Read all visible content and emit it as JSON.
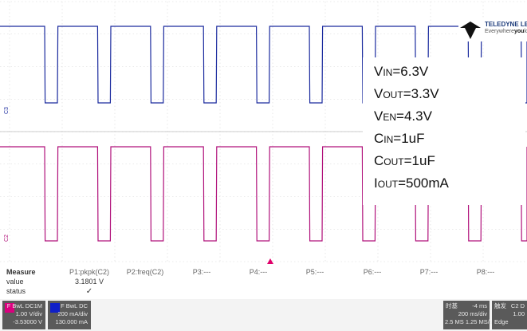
{
  "scope": {
    "channels": [
      {
        "name": "C3",
        "color": "#1a2a9e",
        "label": "C3"
      },
      {
        "name": "C2",
        "color": "#b0107a",
        "label": "C2"
      }
    ],
    "trigger_color": "#e0006b"
  },
  "logo": {
    "brand": "TELEDYNE LECROY",
    "tagline_pre": "Everywhere",
    "tagline_you": "you",
    "tagline_post": "look"
  },
  "annotation": {
    "lines": [
      {
        "main": "V",
        "sub": "IN",
        "rest": "=6.3V"
      },
      {
        "main": "V",
        "sub": "OUT",
        "rest": "=3.3V"
      },
      {
        "main": "V",
        "sub": "EN",
        "rest": "=4.3V"
      },
      {
        "main": "C",
        "sub": "IN",
        "rest": "=1uF"
      },
      {
        "main": "C",
        "sub": "OUT",
        "rest": "=1uF"
      },
      {
        "main": "I",
        "sub": "OUT",
        "rest": "=500mA"
      }
    ]
  },
  "measure": {
    "row_labels": {
      "title": "Measure",
      "value": "value",
      "status": "status"
    },
    "params": [
      {
        "name": "P1:pkpk(C2)",
        "value": "3.1801 V",
        "status": "✓"
      },
      {
        "name": "P2:freq(C2)",
        "value": "",
        "status": ""
      },
      {
        "name": "P3:---",
        "value": "",
        "status": ""
      },
      {
        "name": "P4:---",
        "value": "",
        "status": ""
      },
      {
        "name": "P5:---",
        "value": "",
        "status": ""
      },
      {
        "name": "P6:---",
        "value": "",
        "status": ""
      },
      {
        "name": "P7:---",
        "value": "",
        "status": ""
      },
      {
        "name": "P8:---",
        "value": "",
        "status": ""
      }
    ]
  },
  "channel_boxes": [
    {
      "id": "C2",
      "swatch": "#d9007e",
      "lines": [
        "F BwL DC1M",
        "1.00 V/div",
        "-3.53000 V"
      ]
    },
    {
      "id": "C3",
      "swatch": "#1020c8",
      "lines": [
        "F BwL DC",
        "200 mA/div",
        "130.000 mA"
      ]
    }
  ],
  "timebase": {
    "title": "时基",
    "delay": "-4 ms",
    "lines": [
      "200 ms/div",
      "2.5 MS   1.25 MS/s"
    ]
  },
  "trigger": {
    "title": "触发",
    "source": "C2 D",
    "lines": [
      "1.00",
      "Edge"
    ]
  }
}
